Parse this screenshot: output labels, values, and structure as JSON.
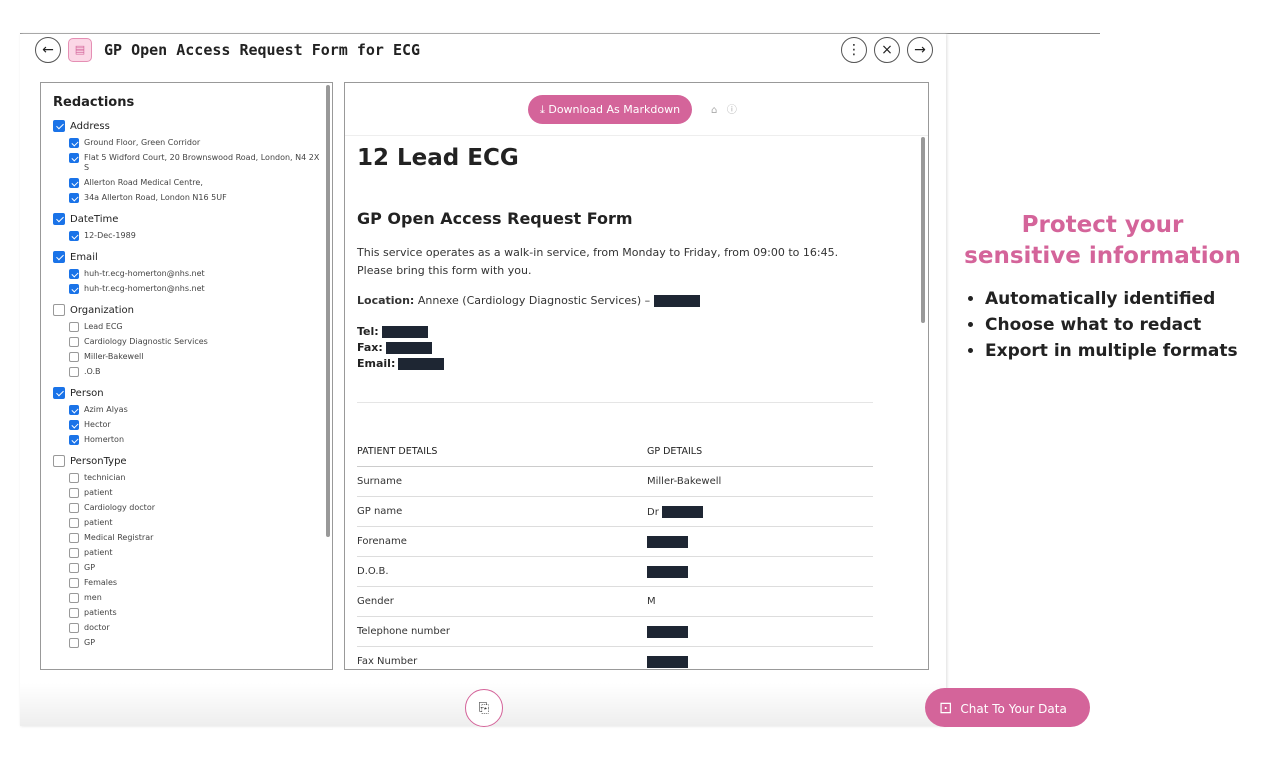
{
  "header": {
    "title": "GP Open Access Request Form for ECG"
  },
  "redactions": {
    "title": "Redactions",
    "groups": [
      {
        "name": "Address",
        "checked": true,
        "items": [
          {
            "label": "Ground Floor, Green Corridor",
            "checked": true
          },
          {
            "label": "Flat 5 Widford Court, 20 Brownswood Road, London, N4 2X S",
            "checked": true
          },
          {
            "label": "Allerton Road Medical Centre,",
            "checked": true
          },
          {
            "label": "34a Allerton Road, London N16 5UF",
            "checked": true
          }
        ]
      },
      {
        "name": "DateTime",
        "checked": true,
        "items": [
          {
            "label": "12-Dec-1989",
            "checked": true
          }
        ]
      },
      {
        "name": "Email",
        "checked": true,
        "items": [
          {
            "label": "huh-tr.ecg-homerton@nhs.net",
            "checked": true
          },
          {
            "label": "huh-tr.ecg-homerton@nhs.net",
            "checked": true
          }
        ]
      },
      {
        "name": "Organization",
        "checked": false,
        "items": [
          {
            "label": "Lead ECG",
            "checked": false
          },
          {
            "label": "Cardiology Diagnostic Services",
            "checked": false
          },
          {
            "label": "Miller-Bakewell",
            "checked": false
          },
          {
            "label": ".O.B",
            "checked": false
          }
        ]
      },
      {
        "name": "Person",
        "checked": true,
        "items": [
          {
            "label": "Azim Alyas",
            "checked": true
          },
          {
            "label": "Hector",
            "checked": true
          },
          {
            "label": "Homerton",
            "checked": true
          }
        ]
      },
      {
        "name": "PersonType",
        "checked": false,
        "items": [
          {
            "label": "technician",
            "checked": false
          },
          {
            "label": "patient",
            "checked": false
          },
          {
            "label": "Cardiology doctor",
            "checked": false
          },
          {
            "label": "patient",
            "checked": false
          },
          {
            "label": "Medical Registrar",
            "checked": false
          },
          {
            "label": "patient",
            "checked": false
          },
          {
            "label": "GP",
            "checked": false
          },
          {
            "label": "Females",
            "checked": false
          },
          {
            "label": "men",
            "checked": false
          },
          {
            "label": "patients",
            "checked": false
          },
          {
            "label": "doctor",
            "checked": false
          },
          {
            "label": "GP",
            "checked": false
          }
        ]
      }
    ]
  },
  "toolbar": {
    "download": "Download As Markdown"
  },
  "document": {
    "h1": "12 Lead ECG",
    "h2": "GP Open Access Request Form",
    "intro": "This service operates as a walk-in service, from Monday to Friday, from 09:00 to 16:45. Please bring this form with you.",
    "location_label": "Location:",
    "location_text": "Annexe (Cardiology Diagnostic Services) –",
    "contacts": [
      "Tel:",
      "Fax:",
      "Email:"
    ],
    "table": {
      "headers": [
        "PATIENT DETAILS",
        "GP DETAILS"
      ],
      "rows": [
        {
          "label": "Surname",
          "value": "Miller-Bakewell"
        },
        {
          "label": "GP name",
          "value": "Dr",
          "redacted": true
        },
        {
          "label": "Forename",
          "redacted": true
        },
        {
          "label": "D.O.B.",
          "redacted": true
        },
        {
          "label": "Gender",
          "value": "M"
        },
        {
          "label": "Telephone number",
          "redacted": true
        },
        {
          "label": "Fax Number",
          "redacted": true
        }
      ]
    }
  },
  "promo": {
    "title": "Protect your sensitive information",
    "bullets": [
      "Automatically identified",
      "Choose what to redact",
      "Export in multiple formats"
    ]
  },
  "chat": {
    "label": "Chat To Your Data"
  }
}
